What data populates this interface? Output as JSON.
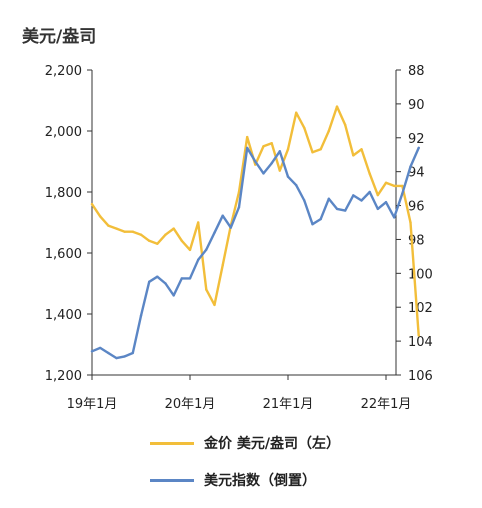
{
  "chart_data": {
    "type": "line",
    "title": "美元/盎司",
    "x_ticks": [
      "19年1月",
      "20年1月",
      "21年1月",
      "22年1月"
    ],
    "y_left": {
      "ticks": [
        "1,200",
        "1,400",
        "1,600",
        "1,800",
        "2,000",
        "2,200"
      ],
      "range": [
        1200,
        2200
      ]
    },
    "y_right": {
      "ticks": [
        "88",
        "90",
        "92",
        "94",
        "96",
        "98",
        "100",
        "102",
        "104",
        "106"
      ],
      "range": [
        88,
        106
      ],
      "inverted": true
    },
    "legend_position": "bottom",
    "series": [
      {
        "name": "金价 美元/盎司（左）",
        "axis": "left",
        "color": "#F2BE3A",
        "x": [
          "2019-01",
          "2019-02",
          "2019-03",
          "2019-04",
          "2019-05",
          "2019-06",
          "2019-07",
          "2019-08",
          "2019-09",
          "2019-10",
          "2019-11",
          "2019-12",
          "2020-01",
          "2020-02",
          "2020-03",
          "2020-04",
          "2020-05",
          "2020-06",
          "2020-07",
          "2020-08",
          "2020-09",
          "2020-10",
          "2020-11",
          "2020-12",
          "2021-01",
          "2021-02",
          "2021-03",
          "2021-04",
          "2021-05",
          "2021-06",
          "2021-07",
          "2021-08",
          "2021-09",
          "2021-10",
          "2021-11",
          "2021-12",
          "2022-01",
          "2022-02",
          "2022-03",
          "2022-04",
          "2022-05"
        ],
        "values": [
          1760,
          1720,
          1690,
          1680,
          1670,
          1670,
          1660,
          1640,
          1630,
          1660,
          1680,
          1640,
          1610,
          1700,
          1480,
          1430,
          1560,
          1690,
          1800,
          1980,
          1890,
          1950,
          1960,
          1870,
          1940,
          2060,
          2010,
          1930,
          1940,
          2000,
          2080,
          2020,
          1920,
          1940,
          1860,
          1790,
          1830,
          1820,
          1820,
          1700,
          1330
        ]
      },
      {
        "name": "美元指数（倒置）",
        "axis": "right",
        "color": "#5B86C5",
        "x": [
          "2019-01",
          "2019-02",
          "2019-03",
          "2019-04",
          "2019-05",
          "2019-06",
          "2019-07",
          "2019-08",
          "2019-09",
          "2019-10",
          "2019-11",
          "2019-12",
          "2020-01",
          "2020-02",
          "2020-03",
          "2020-04",
          "2020-05",
          "2020-06",
          "2020-07",
          "2020-08",
          "2020-09",
          "2020-10",
          "2020-11",
          "2020-12",
          "2021-01",
          "2021-02",
          "2021-03",
          "2021-04",
          "2021-05",
          "2021-06",
          "2021-07",
          "2021-08",
          "2021-09",
          "2021-10",
          "2021-11",
          "2021-12",
          "2022-01",
          "2022-02",
          "2022-03",
          "2022-04",
          "2022-05"
        ],
        "values": [
          104.6,
          104.4,
          104.7,
          105,
          104.9,
          104.7,
          102.5,
          100.5,
          100.2,
          100.6,
          101.3,
          100.3,
          100.3,
          99.2,
          98.6,
          97.6,
          96.6,
          97.3,
          96.1,
          92.6,
          93.4,
          94.1,
          93.5,
          92.8,
          94.3,
          94.8,
          95.7,
          97.1,
          96.8,
          95.6,
          96.2,
          96.3,
          95.4,
          95.7,
          95.2,
          96.2,
          95.8,
          96.7,
          95.3,
          93.7,
          92.6
        ]
      }
    ]
  }
}
